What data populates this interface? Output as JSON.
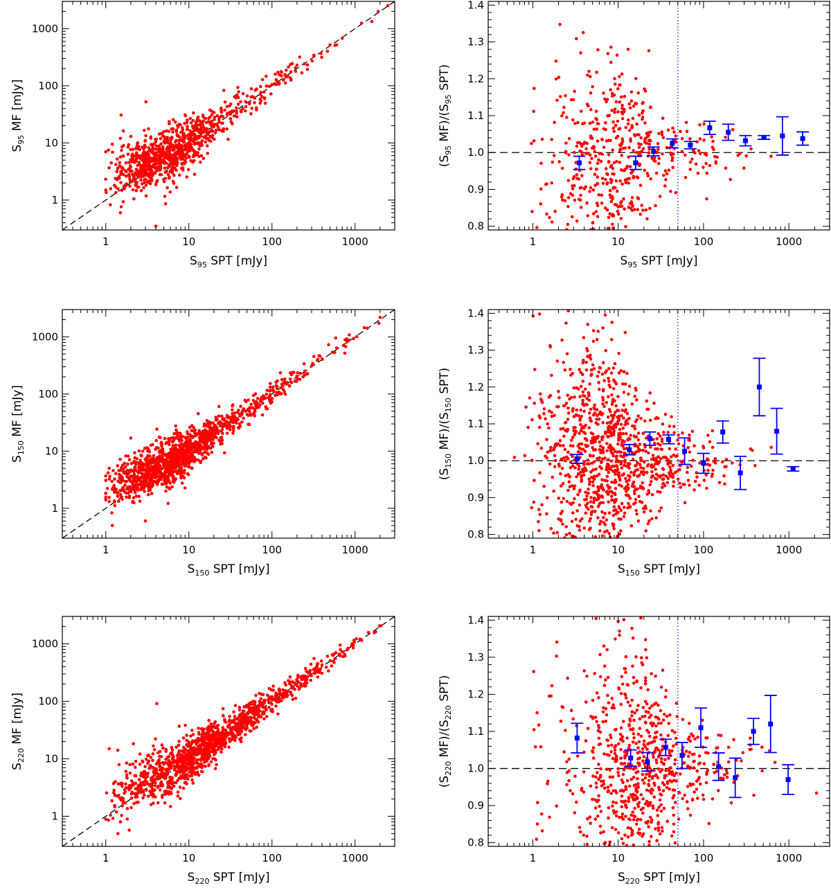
{
  "chart_data": [
    {
      "id": "s95-scatter",
      "type": "scatter",
      "band": "95",
      "xlabel": "S95 SPT [mJy]",
      "ylabel": "S95 MF [mJy]",
      "x_scale": "log",
      "y_scale": "log",
      "xlim": [
        0.3,
        3000
      ],
      "ylim": [
        0.3,
        3000
      ],
      "x_ticks": [
        "1",
        "10",
        "100",
        "1000"
      ],
      "y_ticks": [
        "1",
        "10",
        "100",
        "1000"
      ],
      "reference_line": "y = x (dashed)",
      "cloud": {
        "n": 900,
        "seed": 11,
        "x_min": 1.0,
        "x_max": 12,
        "y_sigma_low_x": 0.45,
        "trend": 1.0
      },
      "points_named": [
        [
          1.0,
          7.0
        ],
        [
          1.2,
          9.5
        ],
        [
          1.5,
          12.0
        ],
        [
          2.0,
          13.0
        ],
        [
          3.0,
          11.0
        ],
        [
          4.0,
          0.35
        ],
        [
          1.5,
          0.6
        ],
        [
          100,
          105
        ],
        [
          200,
          230
        ],
        [
          320,
          330
        ],
        [
          500,
          520
        ],
        [
          700,
          680
        ],
        [
          1200,
          1250
        ],
        [
          1900,
          2000
        ]
      ]
    },
    {
      "id": "s95-ratio",
      "type": "scatter",
      "band": "95",
      "xlabel": "S95 SPT [mJy]",
      "ylabel": "(S95 MF)/(S95 SPT)",
      "x_scale": "log",
      "xlim": [
        0.3,
        3000
      ],
      "ylim": [
        0.79,
        1.41
      ],
      "x_ticks": [
        "1",
        "10",
        "100",
        "1000"
      ],
      "y_ticks": [
        "0.8",
        "0.9",
        "1.0",
        "1.1",
        "1.2",
        "1.3",
        "1.4"
      ],
      "unity_line": 1.0,
      "flux_cut": 50,
      "cloud": {
        "n": 520,
        "seed": 21,
        "peak_x": 9,
        "sigma": 0.13
      },
      "binned": [
        {
          "x": 3.5,
          "y": 0.972,
          "err": 0.018
        },
        {
          "x": 16,
          "y": 0.972,
          "err": 0.018
        },
        {
          "x": 26,
          "y": 1.003,
          "err": 0.012
        },
        {
          "x": 43,
          "y": 1.025,
          "err": 0.012
        },
        {
          "x": 70,
          "y": 1.02,
          "err": 0.01
        },
        {
          "x": 118,
          "y": 1.067,
          "err": 0.018
        },
        {
          "x": 195,
          "y": 1.055,
          "err": 0.022
        },
        {
          "x": 310,
          "y": 1.032,
          "err": 0.014
        },
        {
          "x": 510,
          "y": 1.041,
          "err": 0.005
        },
        {
          "x": 840,
          "y": 1.045,
          "err": 0.052
        },
        {
          "x": 1450,
          "y": 1.038,
          "err": 0.018
        }
      ]
    },
    {
      "id": "s150-scatter",
      "type": "scatter",
      "band": "150",
      "xlabel": "S150 SPT [mJy]",
      "ylabel": "S150 MF [mJy]",
      "x_scale": "log",
      "y_scale": "log",
      "xlim": [
        0.3,
        3000
      ],
      "ylim": [
        0.3,
        3000
      ],
      "x_ticks": [
        "1",
        "10",
        "100",
        "1000"
      ],
      "y_ticks": [
        "1",
        "10",
        "100",
        "1000"
      ],
      "reference_line": "y = x (dashed)",
      "cloud": {
        "n": 1300,
        "seed": 31,
        "x_min": 1.0,
        "x_max": 15,
        "y_sigma_low_x": 0.35,
        "trend": 1.0
      },
      "points_named": [
        [
          1.1,
          5.0
        ],
        [
          2.0,
          17.0
        ],
        [
          1.2,
          0.5
        ],
        [
          3.0,
          0.6
        ],
        [
          80,
          90
        ],
        [
          150,
          160
        ],
        [
          300,
          310
        ],
        [
          600,
          640
        ],
        [
          1400,
          1420
        ]
      ]
    },
    {
      "id": "s150-ratio",
      "type": "scatter",
      "band": "150",
      "xlabel": "S150 SPT [mJy]",
      "ylabel": "(S150 MF)/(S150 SPT)",
      "x_scale": "log",
      "xlim": [
        0.3,
        3000
      ],
      "ylim": [
        0.79,
        1.41
      ],
      "x_ticks": [
        "1",
        "10",
        "100",
        "1000"
      ],
      "y_ticks": [
        "0.8",
        "0.9",
        "1.0",
        "1.1",
        "1.2",
        "1.3",
        "1.4"
      ],
      "unity_line": 1.0,
      "flux_cut": 50,
      "cloud": {
        "n": 1100,
        "seed": 41,
        "peak_x": 7,
        "sigma": 0.14
      },
      "binned": [
        {
          "x": 3.3,
          "y": 1.005,
          "err": 0.012
        },
        {
          "x": 13.5,
          "y": 1.03,
          "err": 0.014
        },
        {
          "x": 23.5,
          "y": 1.06,
          "err": 0.018
        },
        {
          "x": 39,
          "y": 1.058,
          "err": 0.012
        },
        {
          "x": 60,
          "y": 1.026,
          "err": 0.036
        },
        {
          "x": 100,
          "y": 0.993,
          "err": 0.027
        },
        {
          "x": 168,
          "y": 1.078,
          "err": 0.03
        },
        {
          "x": 270,
          "y": 0.967,
          "err": 0.045
        },
        {
          "x": 450,
          "y": 1.2,
          "err": 0.078
        },
        {
          "x": 720,
          "y": 1.08,
          "err": 0.062
        },
        {
          "x": 1120,
          "y": 0.978,
          "err": 0.006
        }
      ]
    },
    {
      "id": "s220-scatter",
      "type": "scatter",
      "band": "220",
      "xlabel": "S220 SPT [mJy]",
      "ylabel": "S220 MF [mJy]",
      "x_scale": "log",
      "y_scale": "log",
      "xlim": [
        0.3,
        3000
      ],
      "ylim": [
        0.3,
        3000
      ],
      "x_ticks": [
        "1",
        "10",
        "100",
        "1000"
      ],
      "y_ticks": [
        "1",
        "10",
        "100",
        "1000"
      ],
      "reference_line": "y = x (dashed)",
      "cloud": {
        "n": 1300,
        "seed": 51,
        "x_min": 1.0,
        "x_max": 40,
        "y_sigma_low_x": 0.4,
        "trend": 0.7
      },
      "points_named": [
        [
          1.1,
          15.0
        ],
        [
          1.3,
          4.0
        ],
        [
          1.5,
          0.8
        ],
        [
          1.4,
          0.5
        ],
        [
          100,
          120
        ],
        [
          200,
          230
        ],
        [
          400,
          430
        ],
        [
          700,
          720
        ],
        [
          1200,
          1150
        ]
      ]
    },
    {
      "id": "s220-ratio",
      "type": "scatter",
      "band": "220",
      "xlabel": "S220 SPT [mJy]",
      "ylabel": "(S220 MF)/(S220 SPT)",
      "x_scale": "log",
      "xlim": [
        0.3,
        3000
      ],
      "ylim": [
        0.79,
        1.41
      ],
      "x_ticks": [
        "1",
        "10",
        "100",
        "1000"
      ],
      "y_ticks": [
        "0.8",
        "0.9",
        "1.0",
        "1.1",
        "1.2",
        "1.3",
        "1.4"
      ],
      "unity_line": 1.0,
      "flux_cut": 50,
      "cloud": {
        "n": 780,
        "seed": 61,
        "peak_x": 16,
        "sigma": 0.16
      },
      "binned": [
        {
          "x": 3.3,
          "y": 1.082,
          "err": 0.04
        },
        {
          "x": 14,
          "y": 1.028,
          "err": 0.022
        },
        {
          "x": 22,
          "y": 1.018,
          "err": 0.025
        },
        {
          "x": 36,
          "y": 1.057,
          "err": 0.022
        },
        {
          "x": 56,
          "y": 1.035,
          "err": 0.035
        },
        {
          "x": 93,
          "y": 1.11,
          "err": 0.053
        },
        {
          "x": 150,
          "y": 1.005,
          "err": 0.037
        },
        {
          "x": 235,
          "y": 0.975,
          "err": 0.053
        },
        {
          "x": 385,
          "y": 1.1,
          "err": 0.035
        },
        {
          "x": 610,
          "y": 1.12,
          "err": 0.077
        },
        {
          "x": 980,
          "y": 0.97,
          "err": 0.04
        }
      ]
    }
  ]
}
